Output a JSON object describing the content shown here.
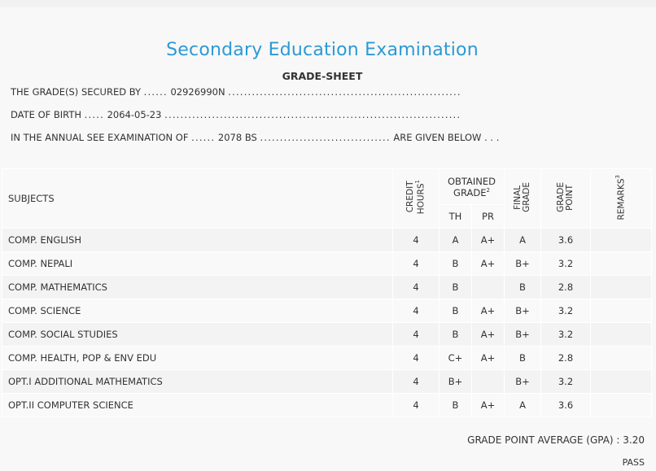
{
  "header": {
    "title": "Secondary Education Examination",
    "subtitle": "GRADE-SHEET"
  },
  "info": {
    "line1_label": "THE GRADE(S) SECURED BY",
    "line1_lead_dots": "......",
    "symbol_no": "02926990N",
    "line1_trail_dots": "...........................................................",
    "line2_label": "DATE OF BIRTH",
    "line2_lead_dots": ".....",
    "dob": "2064-05-23",
    "line2_trail_dots": "...........................................................................",
    "line3_label": "IN THE ANNUAL SEE EXAMINATION OF",
    "line3_lead_dots": "......",
    "exam_year": "2078 BS",
    "line3_mid_dots": ".................................",
    "line3_suffix": "ARE GIVEN BELOW . . ."
  },
  "table": {
    "head": {
      "subjects": "SUBJECTS",
      "credit_line1": "CREDIT",
      "credit_line2": "HOURS",
      "credit_sup": "1",
      "obtained_line1": "OBTAINED",
      "obtained_line2": "GRADE",
      "obtained_sup": "2",
      "th": "TH",
      "pr": "PR",
      "final_line1": "FINAL",
      "final_line2": "GRADE",
      "gp_line1": "GRADE",
      "gp_line2": "POINT",
      "remarks": "REMARKS",
      "remarks_sup": "3"
    },
    "rows": [
      {
        "subject": "COMP. ENGLISH",
        "credit": "4",
        "th": "A",
        "pr": "A+",
        "final": "A",
        "gp": "3.6",
        "remarks": ""
      },
      {
        "subject": "COMP. NEPALI",
        "credit": "4",
        "th": "B",
        "pr": "A+",
        "final": "B+",
        "gp": "3.2",
        "remarks": ""
      },
      {
        "subject": "COMP. MATHEMATICS",
        "credit": "4",
        "th": "B",
        "pr": "",
        "final": "B",
        "gp": "2.8",
        "remarks": ""
      },
      {
        "subject": "COMP. SCIENCE",
        "credit": "4",
        "th": "B",
        "pr": "A+",
        "final": "B+",
        "gp": "3.2",
        "remarks": ""
      },
      {
        "subject": "COMP. SOCIAL STUDIES",
        "credit": "4",
        "th": "B",
        "pr": "A+",
        "final": "B+",
        "gp": "3.2",
        "remarks": ""
      },
      {
        "subject": "COMP. HEALTH, POP & ENV EDU",
        "credit": "4",
        "th": "C+",
        "pr": "A+",
        "final": "B",
        "gp": "2.8",
        "remarks": ""
      },
      {
        "subject": "OPT.I ADDITIONAL MATHEMATICS",
        "credit": "4",
        "th": "B+",
        "pr": "",
        "final": "B+",
        "gp": "3.2",
        "remarks": ""
      },
      {
        "subject": "OPT.II COMPUTER SCIENCE",
        "credit": "4",
        "th": "B",
        "pr": "A+",
        "final": "A",
        "gp": "3.6",
        "remarks": ""
      }
    ]
  },
  "summary": {
    "gpa_label": "GRADE POINT AVERAGE (GPA) :",
    "gpa_value": "3.20",
    "result": "PASS"
  },
  "colors": {
    "title": "#2b9ad6",
    "row_bg_a": "#f3f3f3",
    "row_bg_b": "#f9f9f9",
    "border": "#ffffff"
  }
}
